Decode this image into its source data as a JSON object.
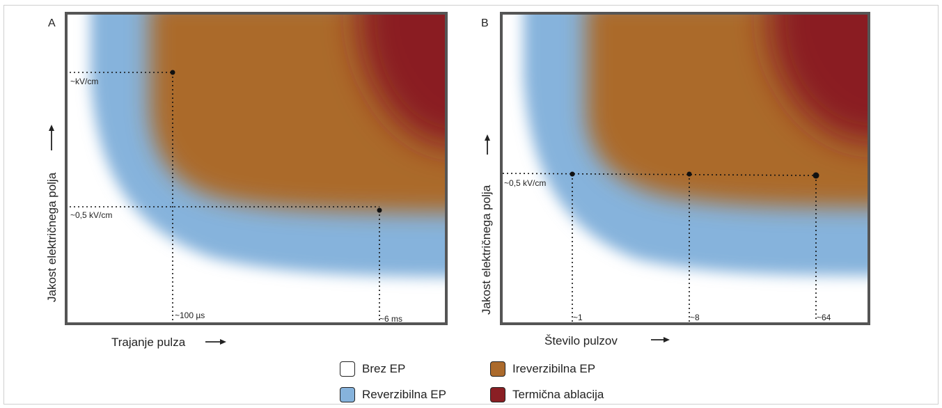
{
  "colors": {
    "none": "#ffffff",
    "reversible": "#86b3dc",
    "irreversible": "#ab6a2c",
    "thermal": "#8a1f24"
  },
  "panel_a": {
    "letter": "A",
    "y_axis": "Jakost električnega polja",
    "x_axis": "Trajanje pulza",
    "annotations": {
      "high_field": "~kV/cm",
      "low_field": "~0,5 kV/cm",
      "short_pulse": "~100 µs",
      "long_pulse": "~6 ms"
    }
  },
  "panel_b": {
    "letter": "B",
    "y_axis": "Jakost električnega polja",
    "x_axis": "Število pulzov",
    "annotations": {
      "field": "~0,5 kV/cm",
      "pulses_1": "~1",
      "pulses_8": "~8",
      "pulses_64": "~64"
    }
  },
  "legend": [
    {
      "label": "Brez EP",
      "color_key": "none"
    },
    {
      "label": "Ireverzibilna EP",
      "color_key": "irreversible"
    },
    {
      "label": "Reverzibilna EP",
      "color_key": "reversible"
    },
    {
      "label": "Termična ablacija",
      "color_key": "thermal"
    }
  ]
}
